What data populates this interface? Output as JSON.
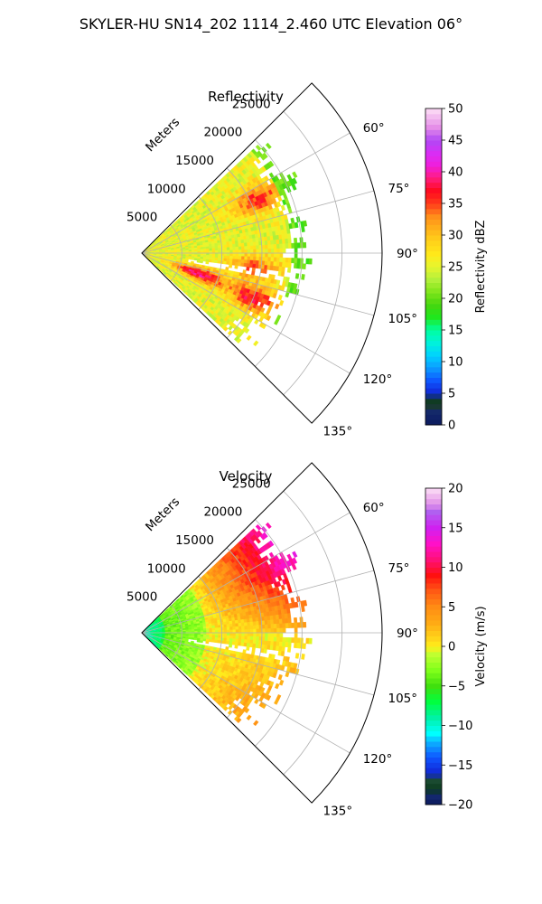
{
  "figure": {
    "suptitle": "SKYLER-HU  SN14_202  1114_2.460 UTC Elevation 06°"
  },
  "chart_data": [
    {
      "type": "heatmap",
      "projection": "polar sector (PPI)",
      "title": "Reflectivity",
      "range_axis_label": "Meters",
      "range_ticks": [
        5000,
        10000,
        15000,
        20000,
        25000
      ],
      "range_tick_labels": [
        "5000",
        "10000",
        "15000",
        "20000",
        "25000"
      ],
      "range_max": 30000,
      "azimuth_range_deg": [
        45,
        135
      ],
      "azimuth_ticks": [
        60,
        75,
        90,
        105,
        120,
        135
      ],
      "azimuth_tick_labels": [
        "60°",
        "75°",
        "90°",
        "105°",
        "120°",
        "135°"
      ],
      "grid": true,
      "colorbar": {
        "label": "Reflectivity dBZ",
        "min": 0,
        "max": 50,
        "ticks": [
          0,
          5,
          10,
          15,
          20,
          25,
          30,
          35,
          40,
          45,
          50
        ],
        "tick_labels": [
          "0",
          "5",
          "10",
          "15",
          "20",
          "25",
          "30",
          "35",
          "40",
          "45",
          "50"
        ]
      },
      "field_summary": {
        "data_extent_m": 22000,
        "dominant_values": [
          20,
          28
        ],
        "core_values": [
          32,
          37
        ],
        "cores": [
          {
            "range_m": 16000,
            "azimuth_deg": 65,
            "value": 34
          },
          {
            "range_m": 7500,
            "azimuth_deg": 110,
            "value": 36
          },
          {
            "range_m": 15000,
            "azimuth_deg": 112,
            "value": 35
          },
          {
            "range_m": 14000,
            "azimuth_deg": 97,
            "value": 33
          }
        ],
        "fringe_value": 18
      }
    },
    {
      "type": "heatmap",
      "projection": "polar sector (PPI)",
      "title": "Velocity",
      "range_axis_label": "Meters",
      "range_ticks": [
        5000,
        10000,
        15000,
        20000,
        25000
      ],
      "range_tick_labels": [
        "5000",
        "10000",
        "15000",
        "20000",
        "25000"
      ],
      "range_max": 30000,
      "azimuth_range_deg": [
        45,
        135
      ],
      "azimuth_ticks": [
        60,
        75,
        90,
        105,
        120,
        135
      ],
      "azimuth_tick_labels": [
        "60°",
        "75°",
        "90°",
        "105°",
        "120°",
        "135°"
      ],
      "grid": true,
      "colorbar": {
        "label": "Velocity (m/s)",
        "min": -20,
        "max": 20,
        "ticks": [
          -20,
          -15,
          -10,
          -5,
          0,
          5,
          10,
          15,
          20
        ],
        "tick_labels": [
          "−20",
          "−15",
          "−10",
          "−5",
          "0",
          "5",
          "10",
          "15",
          "20"
        ]
      },
      "field_summary": {
        "data_extent_m": 22000,
        "near_radar_value": -10,
        "inner_value": -4,
        "mid_value": 0,
        "north_far_value": 11,
        "south_far_value": 5
      }
    }
  ]
}
